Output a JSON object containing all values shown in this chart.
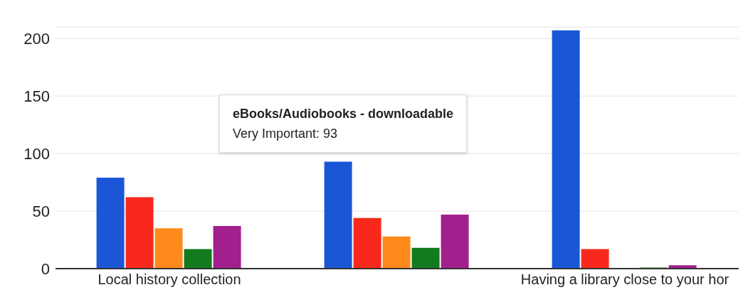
{
  "chart_data": {
    "type": "bar",
    "categories": [
      "Local history collection",
      null,
      "Having a library close to your hor"
    ],
    "series": [
      {
        "color": "#1a56d6",
        "values": [
          79,
          93,
          207
        ]
      },
      {
        "color": "#f8291c",
        "values": [
          62,
          44,
          17
        ]
      },
      {
        "color": "#ff8a1c",
        "values": [
          35,
          28,
          0
        ]
      },
      {
        "color": "#137a1e",
        "values": [
          17,
          18,
          1
        ]
      },
      {
        "color": "#a21f8e",
        "values": [
          37,
          47,
          3
        ]
      }
    ],
    "ylim": [
      0,
      210
    ],
    "yticks": [
      0,
      50,
      100,
      150,
      200
    ],
    "grid": "y",
    "legend": false,
    "annotations": [
      {
        "text": "eBooks/Audiobooks - downloadable"
      },
      "Very Important: 93"
    ]
  }
}
